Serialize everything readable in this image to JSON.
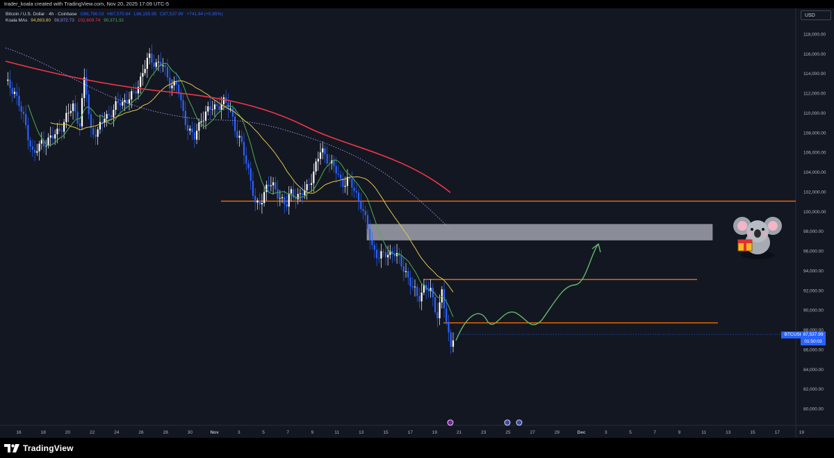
{
  "header": {
    "credit": "trader_koala created with TradingView.com, Nov 20, 2025 17:09 UTC-5"
  },
  "legend": {
    "symbol": "Bitcoin / U.S. Dollar · 4h · Coinbase",
    "open": "O86,796.03",
    "high": "H87,570.64",
    "low": "L86,195.95",
    "close": "C87,537.99",
    "change": "+741.94 (+0.85%)",
    "indicator_name": "Koala MAs",
    "ma_values": [
      {
        "value": "94,893.80",
        "color": "#e3c84b"
      },
      {
        "value": "98,972.73",
        "color": "#9b8ce0"
      },
      {
        "value": "102,609.74",
        "color": "#f23645"
      },
      {
        "value": "90,371.32",
        "color": "#4caf50"
      }
    ]
  },
  "currency_button": "USD",
  "y_axis_labels": [
    "118,000.00",
    "116,000.00",
    "114,000.00",
    "112,000.00",
    "110,000.00",
    "108,000.00",
    "106,000.00",
    "104,000.00",
    "102,000.00",
    "100,000.00",
    "98,000.00",
    "96,000.00",
    "94,000.00",
    "92,000.00",
    "90,000.00",
    "88,000.00",
    "86,000.00",
    "84,000.00",
    "82,000.00",
    "80,000.00"
  ],
  "x_axis_labels": [
    "16",
    "18",
    "20",
    "22",
    "24",
    "26",
    "28",
    "30",
    "Nov",
    "3",
    "5",
    "7",
    "9",
    "11",
    "13",
    "15",
    "17",
    "19",
    "21",
    "23",
    "25",
    "27",
    "29",
    "Dec",
    "3",
    "5",
    "7",
    "9",
    "11",
    "13",
    "15",
    "17",
    "19"
  ],
  "price_tag": {
    "symbol": "BTCUSD",
    "price": "87,537.99",
    "countdown": "01:50:03"
  },
  "footer": {
    "brand": "TradingView"
  },
  "colors": {
    "background": "#131722",
    "up_candle": "#ffffff",
    "down_candle": "#2962ff",
    "level_line": "#ff6d00",
    "zone": "#b2b5be",
    "projection": "#66bb6a"
  }
}
